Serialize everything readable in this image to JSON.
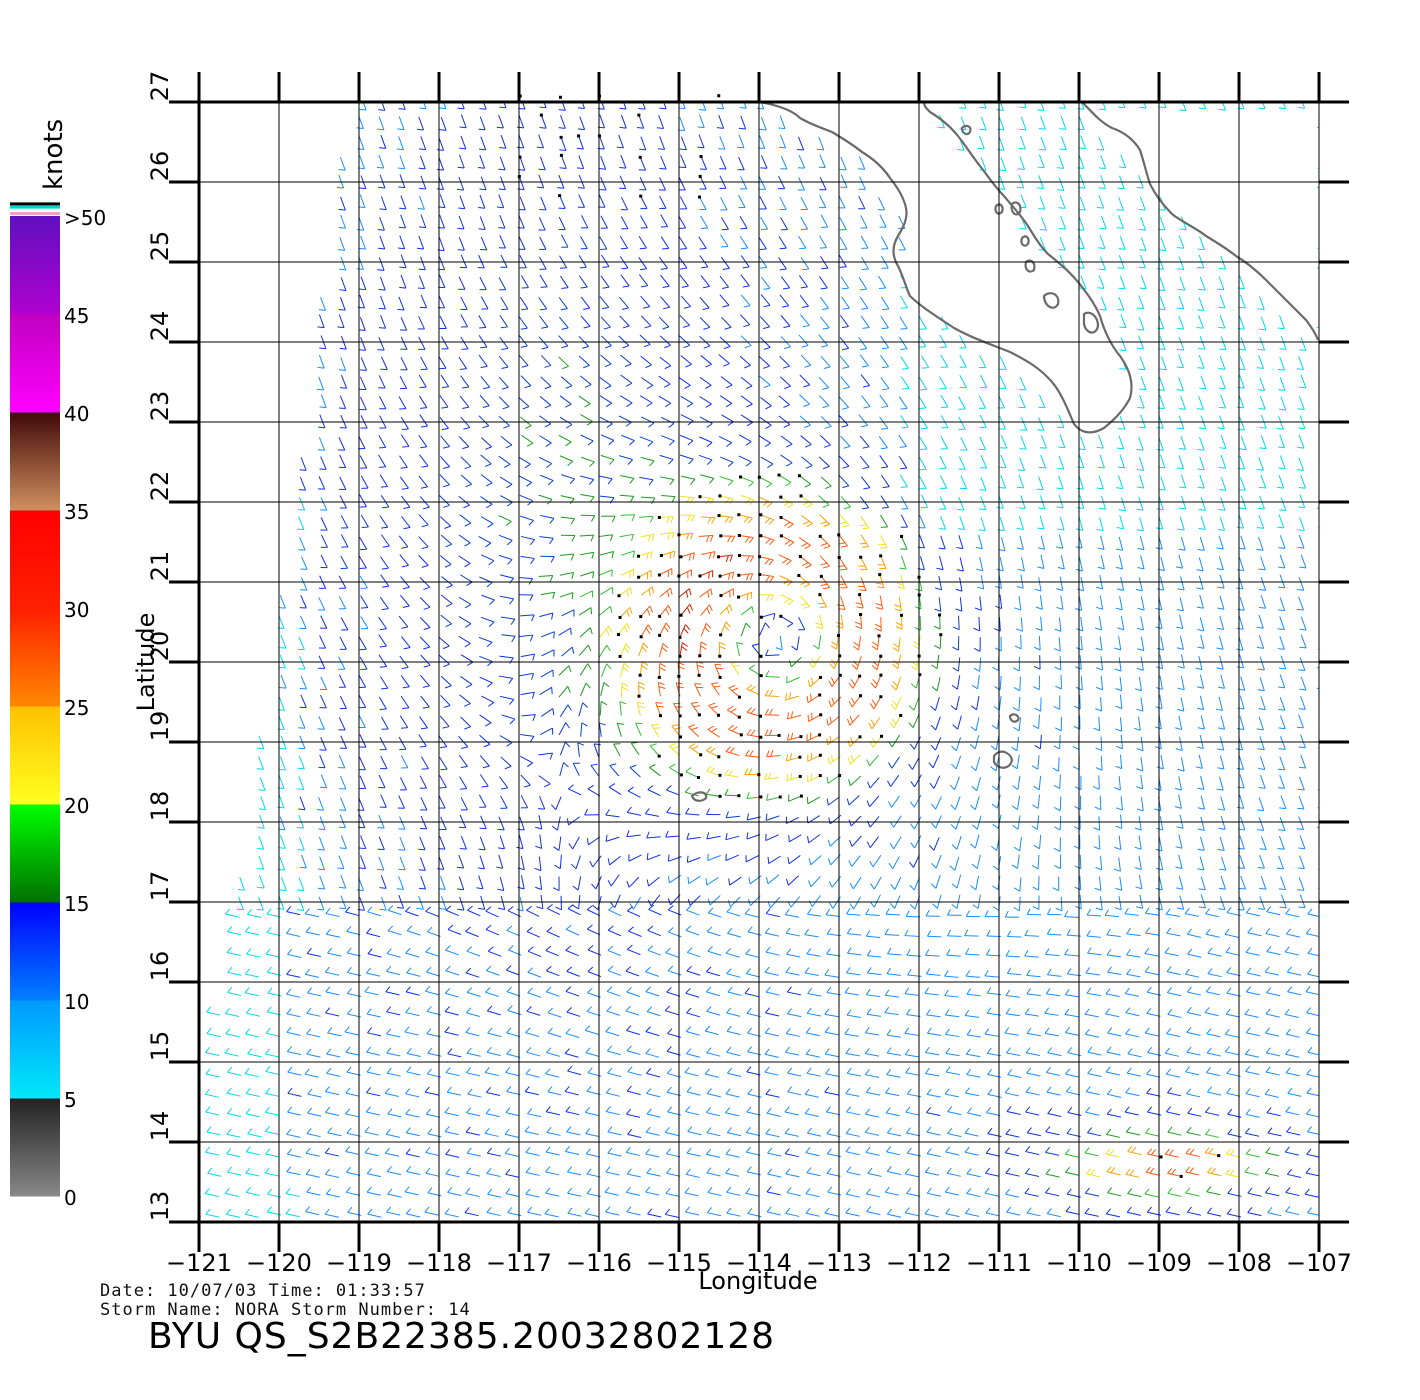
{
  "map": {
    "legend": {
      "unit_label": "knots",
      "bins": [
        {
          "min": 0,
          "max": 5,
          "colors": [
            "#888888",
            "#222222"
          ]
        },
        {
          "min": 5,
          "max": 10,
          "colors": [
            "#00e8f8",
            "#0099ff"
          ]
        },
        {
          "min": 10,
          "max": 15,
          "colors": [
            "#0080ff",
            "#0000ff"
          ]
        },
        {
          "min": 15,
          "max": 20,
          "colors": [
            "#007000",
            "#00ff00"
          ]
        },
        {
          "min": 20,
          "max": 25,
          "colors": [
            "#ffff20",
            "#ffc000"
          ]
        },
        {
          "min": 25,
          "max": 30,
          "colors": [
            "#ff8800",
            "#ff2000"
          ]
        },
        {
          "min": 30,
          "max": 35,
          "colors": [
            "#ff2000",
            "#ff0000"
          ]
        },
        {
          "min": 35,
          "max": 40,
          "colors": [
            "#d09060",
            "#400808"
          ]
        },
        {
          "min": 40,
          "max": 45,
          "colors": [
            "#ff00ff",
            "#c000c0"
          ]
        },
        {
          "min": 45,
          "max": 50,
          "colors": [
            "#b000d0",
            "#6010c0"
          ]
        }
      ],
      "tick_labels": [
        "0",
        "5",
        "10",
        "15",
        "20",
        "25",
        "30",
        "35",
        "40",
        "45",
        ">50"
      ],
      "top_stripe_colors": [
        "#f0a0c0",
        "#ffffff",
        "#00d0d0",
        "#000000"
      ]
    },
    "axes": {
      "xlabel": "Longitude",
      "ylabel": "Latitude",
      "lon_range": [
        -121,
        -107
      ],
      "lat_range": [
        13,
        27
      ],
      "lon_ticks": [
        -121,
        -120,
        -119,
        -118,
        -117,
        -116,
        -115,
        -114,
        -113,
        -112,
        -111,
        -110,
        -109,
        -108,
        -107
      ],
      "lat_ticks": [
        13,
        14,
        15,
        16,
        17,
        18,
        19,
        20,
        21,
        22,
        23,
        24,
        25,
        26,
        27
      ],
      "lon_tick_labels": [
        "−121",
        "−120",
        "−119",
        "−118",
        "−117",
        "−116",
        "−115",
        "−114",
        "−113",
        "−112",
        "−111",
        "−110",
        "−109",
        "−108",
        "−107"
      ],
      "lat_tick_labels": [
        "13",
        "14",
        "15",
        "16",
        "17",
        "18",
        "19",
        "20",
        "21",
        "22",
        "23",
        "24",
        "25",
        "26",
        "27"
      ]
    },
    "storm": {
      "center_lon": -113.8,
      "center_lat": 20.3,
      "secondary_max_lon": -108.8,
      "secondary_max_lat": 13.7
    },
    "annotation": {
      "line1": "Date: 10/07/03   Time: 01:33:57",
      "line2": "Storm Name: NORA   Storm Number: 14",
      "product_id": "BYU QS_S2B22385.20032802128"
    }
  }
}
